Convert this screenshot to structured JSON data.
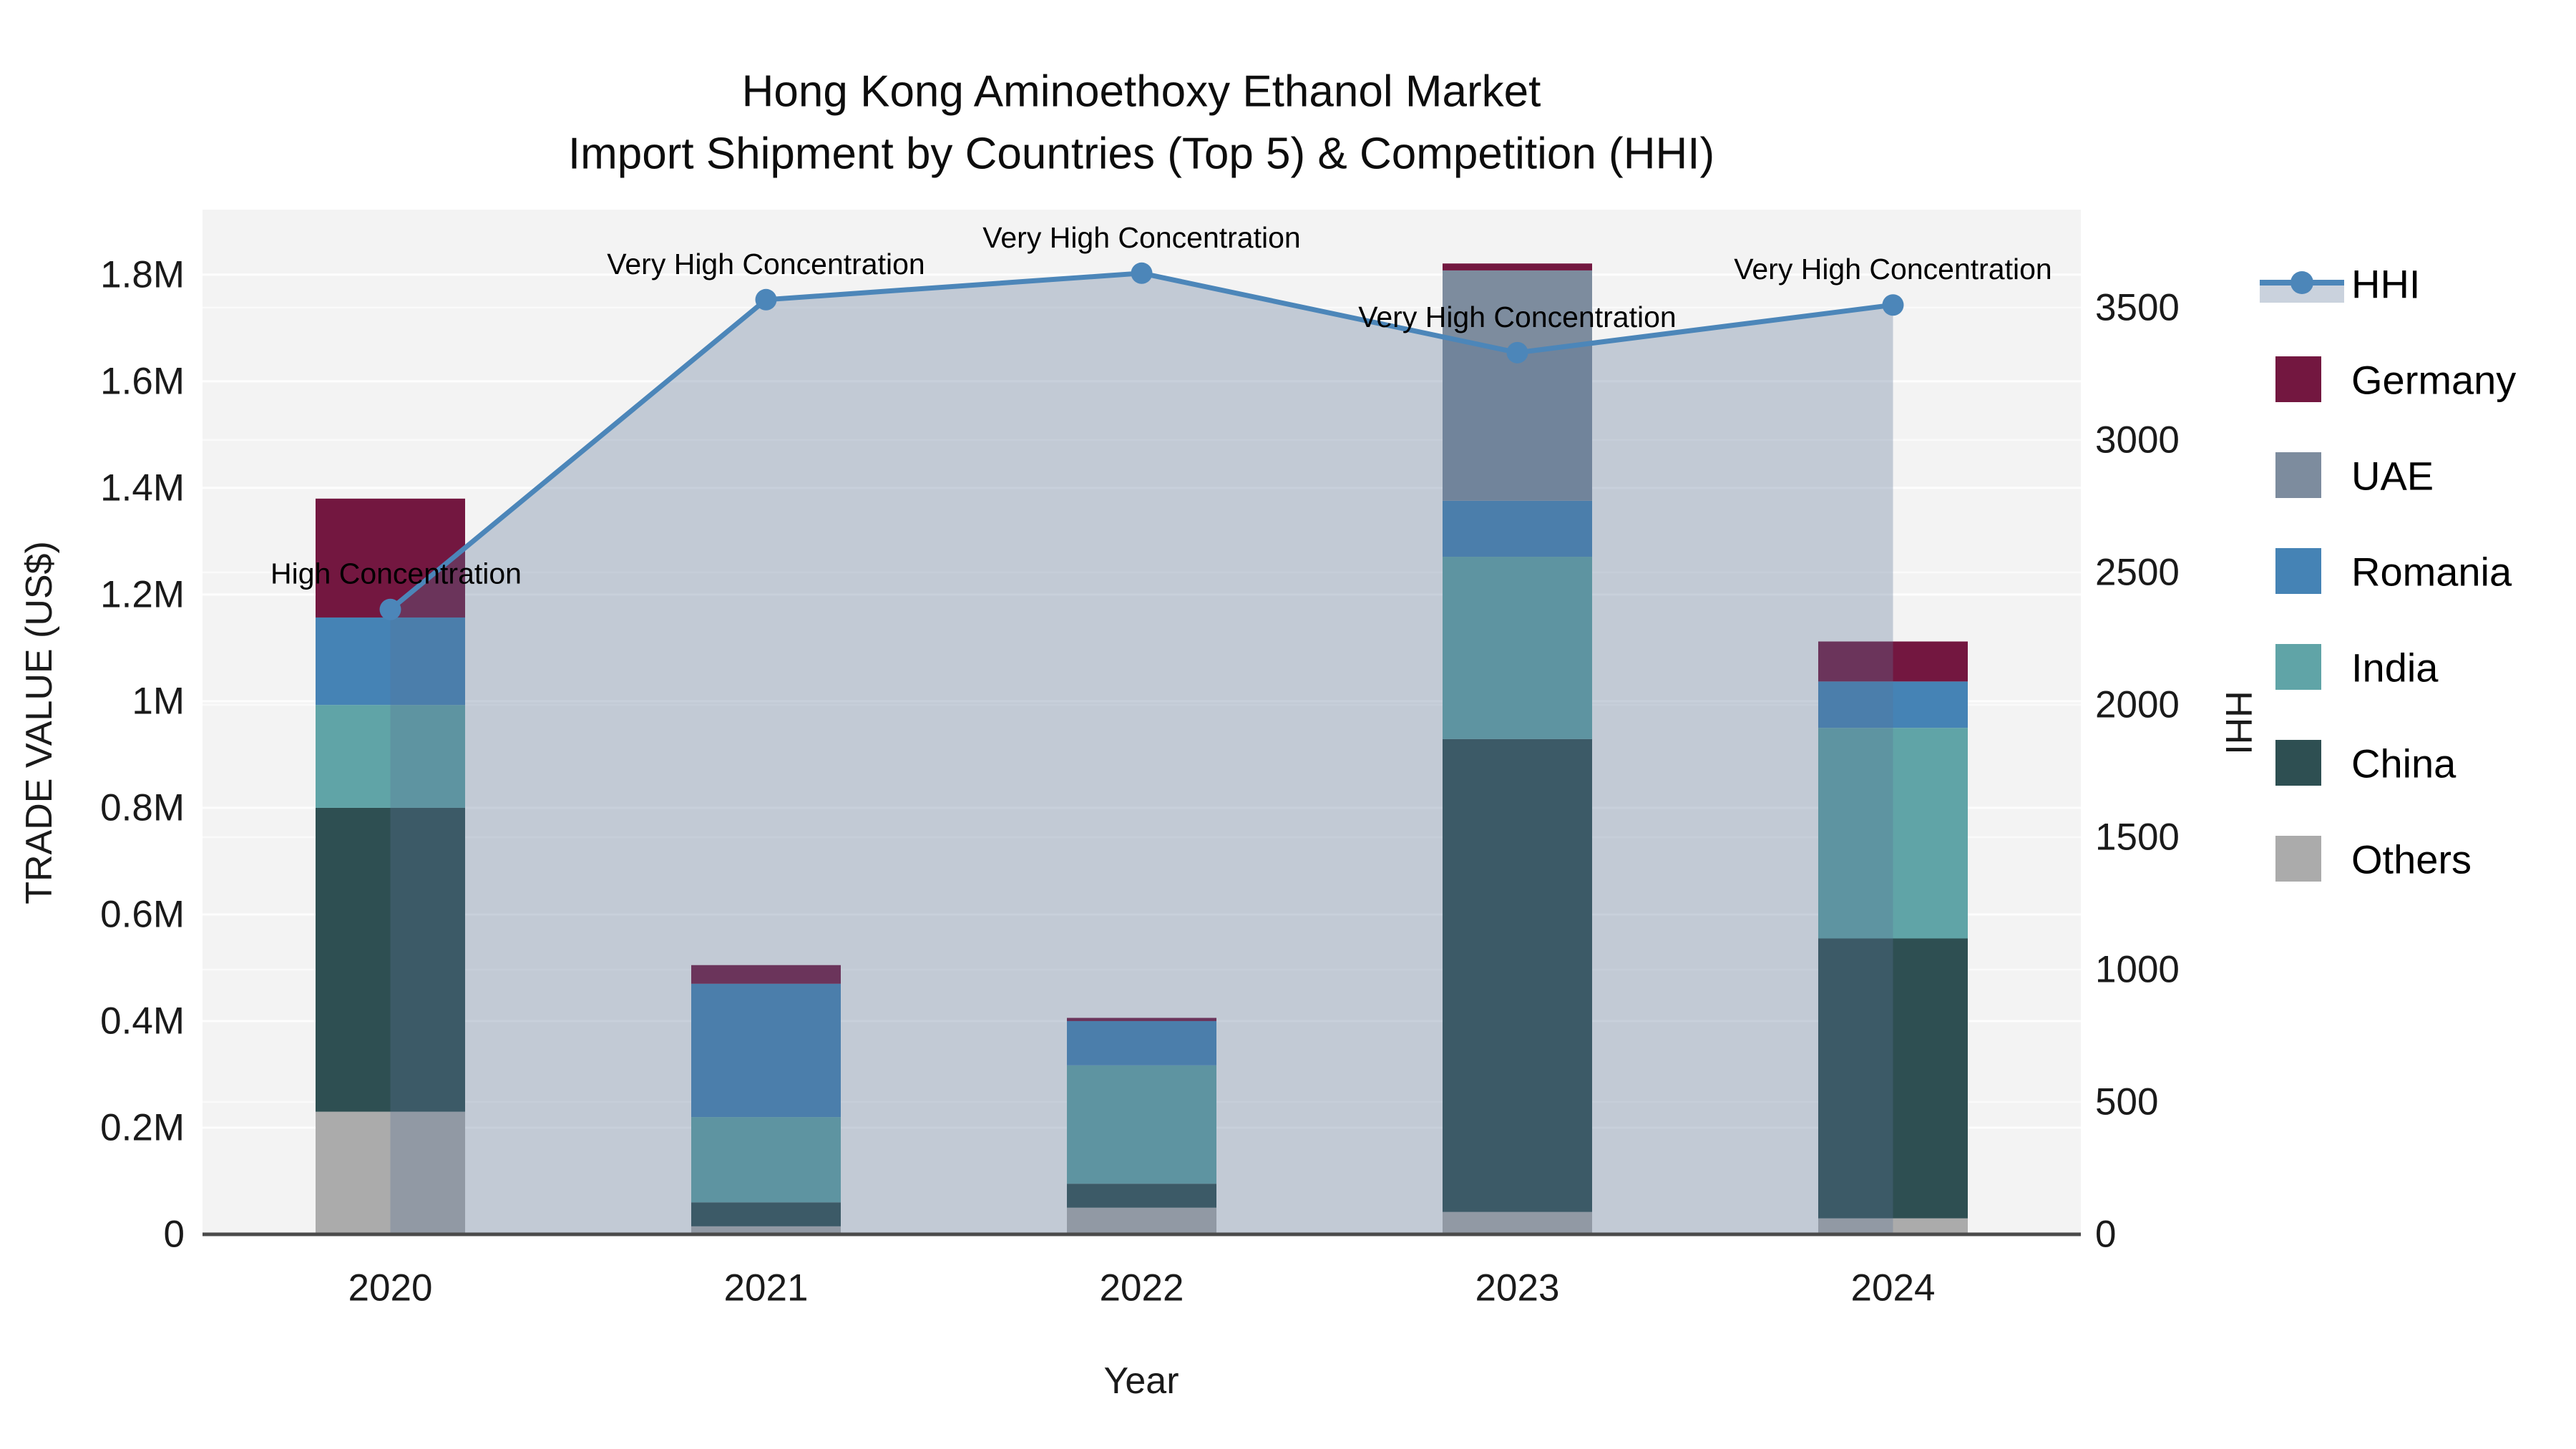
{
  "header": {
    "title_line1": "Hong Kong Aminoethoxy Ethanol Market",
    "title_line2": "Import Shipment by Countries (Top 5) & Competition (HHI)"
  },
  "chart_data": {
    "type": "bar+line",
    "title_line1": "Hong Kong Aminoethoxy Ethanol Market",
    "title_line2": "Import Shipment by Countries (Top 5) & Competition (HHI)",
    "xlabel": "Year",
    "ylabel_left": "TRADE VALUE (US$)",
    "ylabel_right": "HHI",
    "categories": [
      "2020",
      "2021",
      "2022",
      "2023",
      "2024"
    ],
    "bar_value_unit": "million US$",
    "series": [
      {
        "name": "Others",
        "color": "#ABABAB",
        "values": [
          0.23,
          0.015,
          0.05,
          0.042,
          0.03
        ]
      },
      {
        "name": "China",
        "color": "#2E4F52",
        "values": [
          0.57,
          0.045,
          0.045,
          0.887,
          0.525
        ]
      },
      {
        "name": "India",
        "color": "#60A4A7",
        "values": [
          0.193,
          0.16,
          0.222,
          0.342,
          0.395
        ]
      },
      {
        "name": "Romania",
        "color": "#4583B5",
        "values": [
          0.164,
          0.25,
          0.083,
          0.105,
          0.087
        ]
      },
      {
        "name": "UAE",
        "color": "#7D8C9E",
        "values": [
          0.0,
          0.0,
          0.0,
          0.432,
          0.0
        ]
      },
      {
        "name": "Germany",
        "color": "#731740",
        "values": [
          0.223,
          0.035,
          0.006,
          0.013,
          0.075
        ]
      }
    ],
    "line_series": {
      "name": "HHI",
      "color": "#4C86B9",
      "fill_color": "rgba(90,115,150,0.32)",
      "values": [
        2360,
        3530,
        3630,
        3330,
        3510
      ]
    },
    "annotations": [
      "High Concentration",
      "Very High Concentration",
      "Very High Concentration",
      "Very High Concentration",
      "Very High Concentration"
    ],
    "y_left_ticks": [
      0,
      0.2,
      0.4,
      0.6,
      0.8,
      1.0,
      1.2,
      1.4,
      1.6,
      1.8
    ],
    "y_left_tick_labels": [
      "0",
      "0.2M",
      "0.4M",
      "0.6M",
      "0.8M",
      "1M",
      "1.2M",
      "1.4M",
      "1.6M",
      "1.8M"
    ],
    "ylim_left": [
      0,
      1.922
    ],
    "y_right_ticks": [
      0,
      500,
      1000,
      1500,
      2000,
      2500,
      3000,
      3500
    ],
    "ylim_right": [
      0,
      3870
    ],
    "grid": true,
    "legend_position": "right",
    "legend": [
      {
        "label": "HHI",
        "kind": "line",
        "color": "#4C86B9"
      },
      {
        "label": "Germany",
        "kind": "square",
        "color": "#731740"
      },
      {
        "label": "UAE",
        "kind": "square",
        "color": "#7D8C9E"
      },
      {
        "label": "Romania",
        "kind": "square",
        "color": "#4583B5"
      },
      {
        "label": "India",
        "kind": "square",
        "color": "#60A4A7"
      },
      {
        "label": "China",
        "kind": "square",
        "color": "#2E4F52"
      },
      {
        "label": "Others",
        "kind": "square",
        "color": "#ABABAB"
      }
    ]
  }
}
